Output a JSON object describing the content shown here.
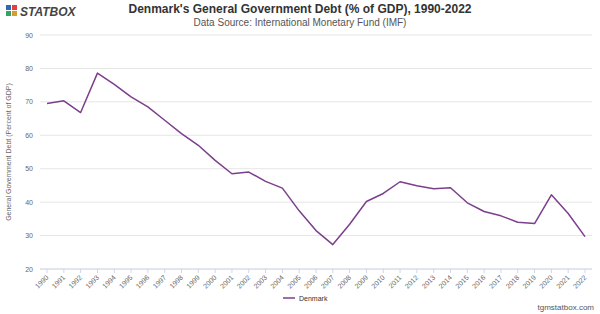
{
  "chart_data": {
    "type": "line",
    "title": "Denmark's General Government Debt (% of GDP), 1990-2022",
    "subtitle": "Data Source: International Monetary Fund (IMF)",
    "y_label": "General Government Debt (Percent of GDP)",
    "annotations": [
      "STATBOX",
      "tgmstatbox.com"
    ],
    "categories": [
      "1990",
      "1991",
      "1992",
      "1993",
      "1994",
      "1995",
      "1996",
      "1997",
      "1998",
      "1999",
      "2000",
      "2001",
      "2002",
      "2003",
      "2004",
      "2005",
      "2006",
      "2007",
      "2008",
      "2009",
      "2010",
      "2011",
      "2012",
      "2013",
      "2014",
      "2015",
      "2016",
      "2017",
      "2018",
      "2019",
      "2020",
      "2021",
      "2022"
    ],
    "series": [
      {
        "name": "Denmark",
        "color": "#7b3f8c",
        "values": [
          69.5,
          70.3,
          66.8,
          78.6,
          75.2,
          71.5,
          68.5,
          64.5,
          60.5,
          57.0,
          52.5,
          48.5,
          49.0,
          46.2,
          44.2,
          37.4,
          31.5,
          27.3,
          33.4,
          40.2,
          42.6,
          46.1,
          44.9,
          44.0,
          44.3,
          39.8,
          37.2,
          35.9,
          34.0,
          33.6,
          42.2,
          36.6,
          29.7
        ]
      }
    ],
    "ylim": [
      20,
      90
    ],
    "yticks": [
      20,
      30,
      40,
      50,
      60,
      70,
      80,
      90
    ],
    "grid": true,
    "legend": "bottom"
  }
}
